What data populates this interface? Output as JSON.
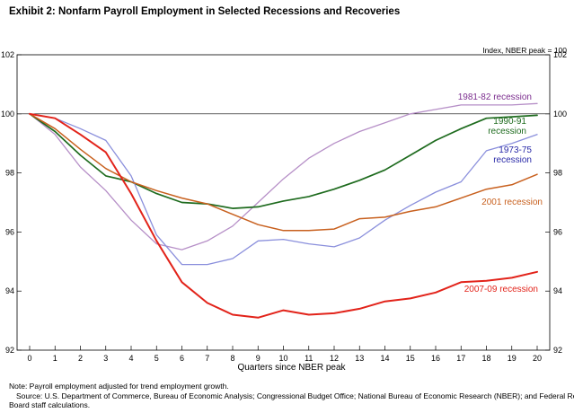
{
  "title": "Exhibit 2: Nonfarm Payroll Employment in Selected Recessions and Recoveries",
  "index_note": "Index, NBER peak = 100",
  "notes": {
    "line1": "Note: Payroll employment adjusted for trend employment growth.",
    "line2": "Source: U.S. Department of Commerce, Bureau of Economic Analysis; Congressional Budget Office; National Bureau of Economic Research (NBER); and Federal Reserve",
    "line3": "Board staff calculations."
  },
  "chart_data": {
    "type": "line",
    "title": "Exhibit 2: Nonfarm Payroll Employment in Selected Recessions and Recoveries",
    "xlabel": "Quarters since NBER peak",
    "ylabel": "Index, NBER peak = 100",
    "x": [
      0,
      1,
      2,
      3,
      4,
      5,
      6,
      7,
      8,
      9,
      10,
      11,
      12,
      13,
      14,
      15,
      16,
      17,
      18,
      19,
      20
    ],
    "xlim": [
      0,
      20
    ],
    "ylim": [
      92,
      102
    ],
    "yticks": [
      92,
      94,
      96,
      98,
      100,
      102
    ],
    "reference_line": 100,
    "grid": false,
    "series": [
      {
        "name": "1981-82 recession",
        "color": "#b68fc7",
        "label_color": "#7b2d8e",
        "label_lines": [
          "1981-82 recession"
        ],
        "values": [
          100,
          99.3,
          98.2,
          97.4,
          96.4,
          95.6,
          95.4,
          95.7,
          96.2,
          97.0,
          97.8,
          98.5,
          99.0,
          99.4,
          99.7,
          100.0,
          100.15,
          100.3,
          100.3,
          100.3,
          100.35
        ]
      },
      {
        "name": "1990-91 recession",
        "color": "#1e6b1e",
        "label_color": "#1e6b1e",
        "label_lines": [
          "1990-91",
          "recession"
        ],
        "values": [
          100,
          99.4,
          98.6,
          97.9,
          97.7,
          97.3,
          97.0,
          96.95,
          96.8,
          96.85,
          97.05,
          97.2,
          97.45,
          97.75,
          98.1,
          98.6,
          99.1,
          99.5,
          99.85,
          99.9,
          99.95
        ]
      },
      {
        "name": "1973-75 recession",
        "color": "#8a8fdc",
        "label_color": "#2a2aa8",
        "label_lines": [
          "1973-75",
          "recession"
        ],
        "values": [
          100,
          99.85,
          99.5,
          99.1,
          97.9,
          95.9,
          94.9,
          94.9,
          95.1,
          95.7,
          95.75,
          95.6,
          95.5,
          95.8,
          96.4,
          96.9,
          97.35,
          97.7,
          98.75,
          99.0,
          99.3
        ]
      },
      {
        "name": "2001 recession",
        "color": "#c8601e",
        "label_color": "#c8601e",
        "label_lines": [
          "2001 recession"
        ],
        "values": [
          100,
          99.5,
          98.8,
          98.15,
          97.7,
          97.4,
          97.15,
          96.95,
          96.6,
          96.25,
          96.05,
          96.05,
          96.1,
          96.45,
          96.5,
          96.7,
          96.85,
          97.15,
          97.45,
          97.6,
          97.95
        ]
      },
      {
        "name": "2007-09 recession",
        "color": "#e2231a",
        "label_color": "#e2231a",
        "label_lines": [
          "2007-09 recession"
        ],
        "values": [
          100,
          99.85,
          99.3,
          98.7,
          97.3,
          95.7,
          94.3,
          93.6,
          93.2,
          93.1,
          93.35,
          93.2,
          93.25,
          93.4,
          93.65,
          93.75,
          93.95,
          94.3,
          94.35,
          94.45,
          94.65
        ]
      }
    ]
  }
}
